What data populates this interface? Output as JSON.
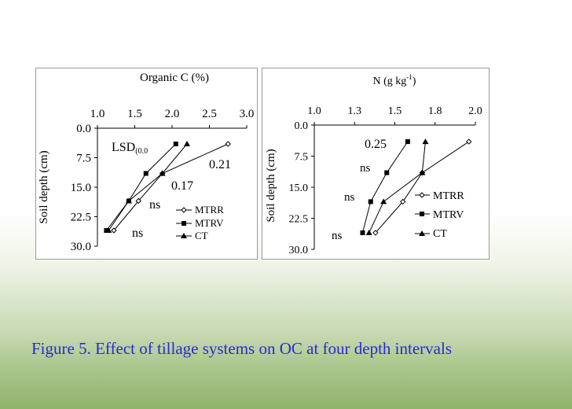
{
  "caption": "Figure 5. Effect of tillage systems on OC at four depth intervals",
  "chart_data": [
    {
      "type": "line",
      "title": "Organic C (%)",
      "ylabel": "Soil depth (cm)",
      "xlim": [
        1.0,
        3.0
      ],
      "ylim": [
        0.0,
        30.0
      ],
      "y_inverted": true,
      "x_axis_position": "top",
      "xticks": [
        "1.0",
        "1.5",
        "2.0",
        "2.5",
        "3.0"
      ],
      "yticks": [
        "0.0",
        "7.5",
        "15.0",
        "22.5",
        "30.0"
      ],
      "series": [
        {
          "name": "MTRR",
          "marker": "open-diamond",
          "x": [
            1.22,
            1.55,
            1.87,
            2.75
          ],
          "y": [
            26.0,
            18.5,
            11.5,
            4.0
          ]
        },
        {
          "name": "MTRV",
          "marker": "square",
          "x": [
            1.12,
            1.42,
            1.65,
            2.05
          ],
          "y": [
            26.0,
            18.5,
            11.5,
            4.0
          ]
        },
        {
          "name": "CT",
          "marker": "triangle",
          "x": [
            1.15,
            1.42,
            1.87,
            2.2
          ],
          "y": [
            26.0,
            18.5,
            11.5,
            4.0
          ]
        }
      ],
      "legend": [
        "MTRR",
        "MTRV",
        "CT"
      ],
      "legend_position": "bottom-right",
      "annotations": {
        "lsd_label": "LSD",
        "lsd_subscript": "(0.0",
        "values": [
          "0.21",
          "0.17",
          "ns",
          "ns"
        ]
      }
    },
    {
      "type": "line",
      "title_base": "N (g kg",
      "title_exponent": "-1",
      "title_end": ")",
      "ylabel": "Soil depth (cm)",
      "xlim": [
        1.0,
        2.0
      ],
      "ylim": [
        0.0,
        30.0
      ],
      "y_inverted": true,
      "x_axis_position": "top",
      "xticks": [
        "1.0",
        "1.3",
        "1.5",
        "1.8",
        "2.0"
      ],
      "yticks": [
        "0.0",
        "7.5",
        "15.0",
        "22.5",
        "30.0"
      ],
      "series": [
        {
          "name": "MTRR",
          "marker": "open-diamond",
          "x": [
            1.38,
            1.55,
            1.67,
            1.96
          ],
          "y": [
            26.0,
            18.5,
            11.5,
            4.0
          ]
        },
        {
          "name": "MTRV",
          "marker": "square",
          "x": [
            1.3,
            1.35,
            1.45,
            1.58
          ],
          "y": [
            26.0,
            18.5,
            11.5,
            4.0
          ]
        },
        {
          "name": "CT",
          "marker": "triangle",
          "x": [
            1.34,
            1.43,
            1.67,
            1.69
          ],
          "y": [
            26.0,
            18.5,
            11.5,
            4.0
          ]
        }
      ],
      "legend": [
        "MTRR",
        "MTRV",
        "CT"
      ],
      "legend_position": "bottom-right",
      "annotations": {
        "values": [
          "0.25",
          "ns",
          "ns",
          "ns"
        ]
      }
    }
  ]
}
